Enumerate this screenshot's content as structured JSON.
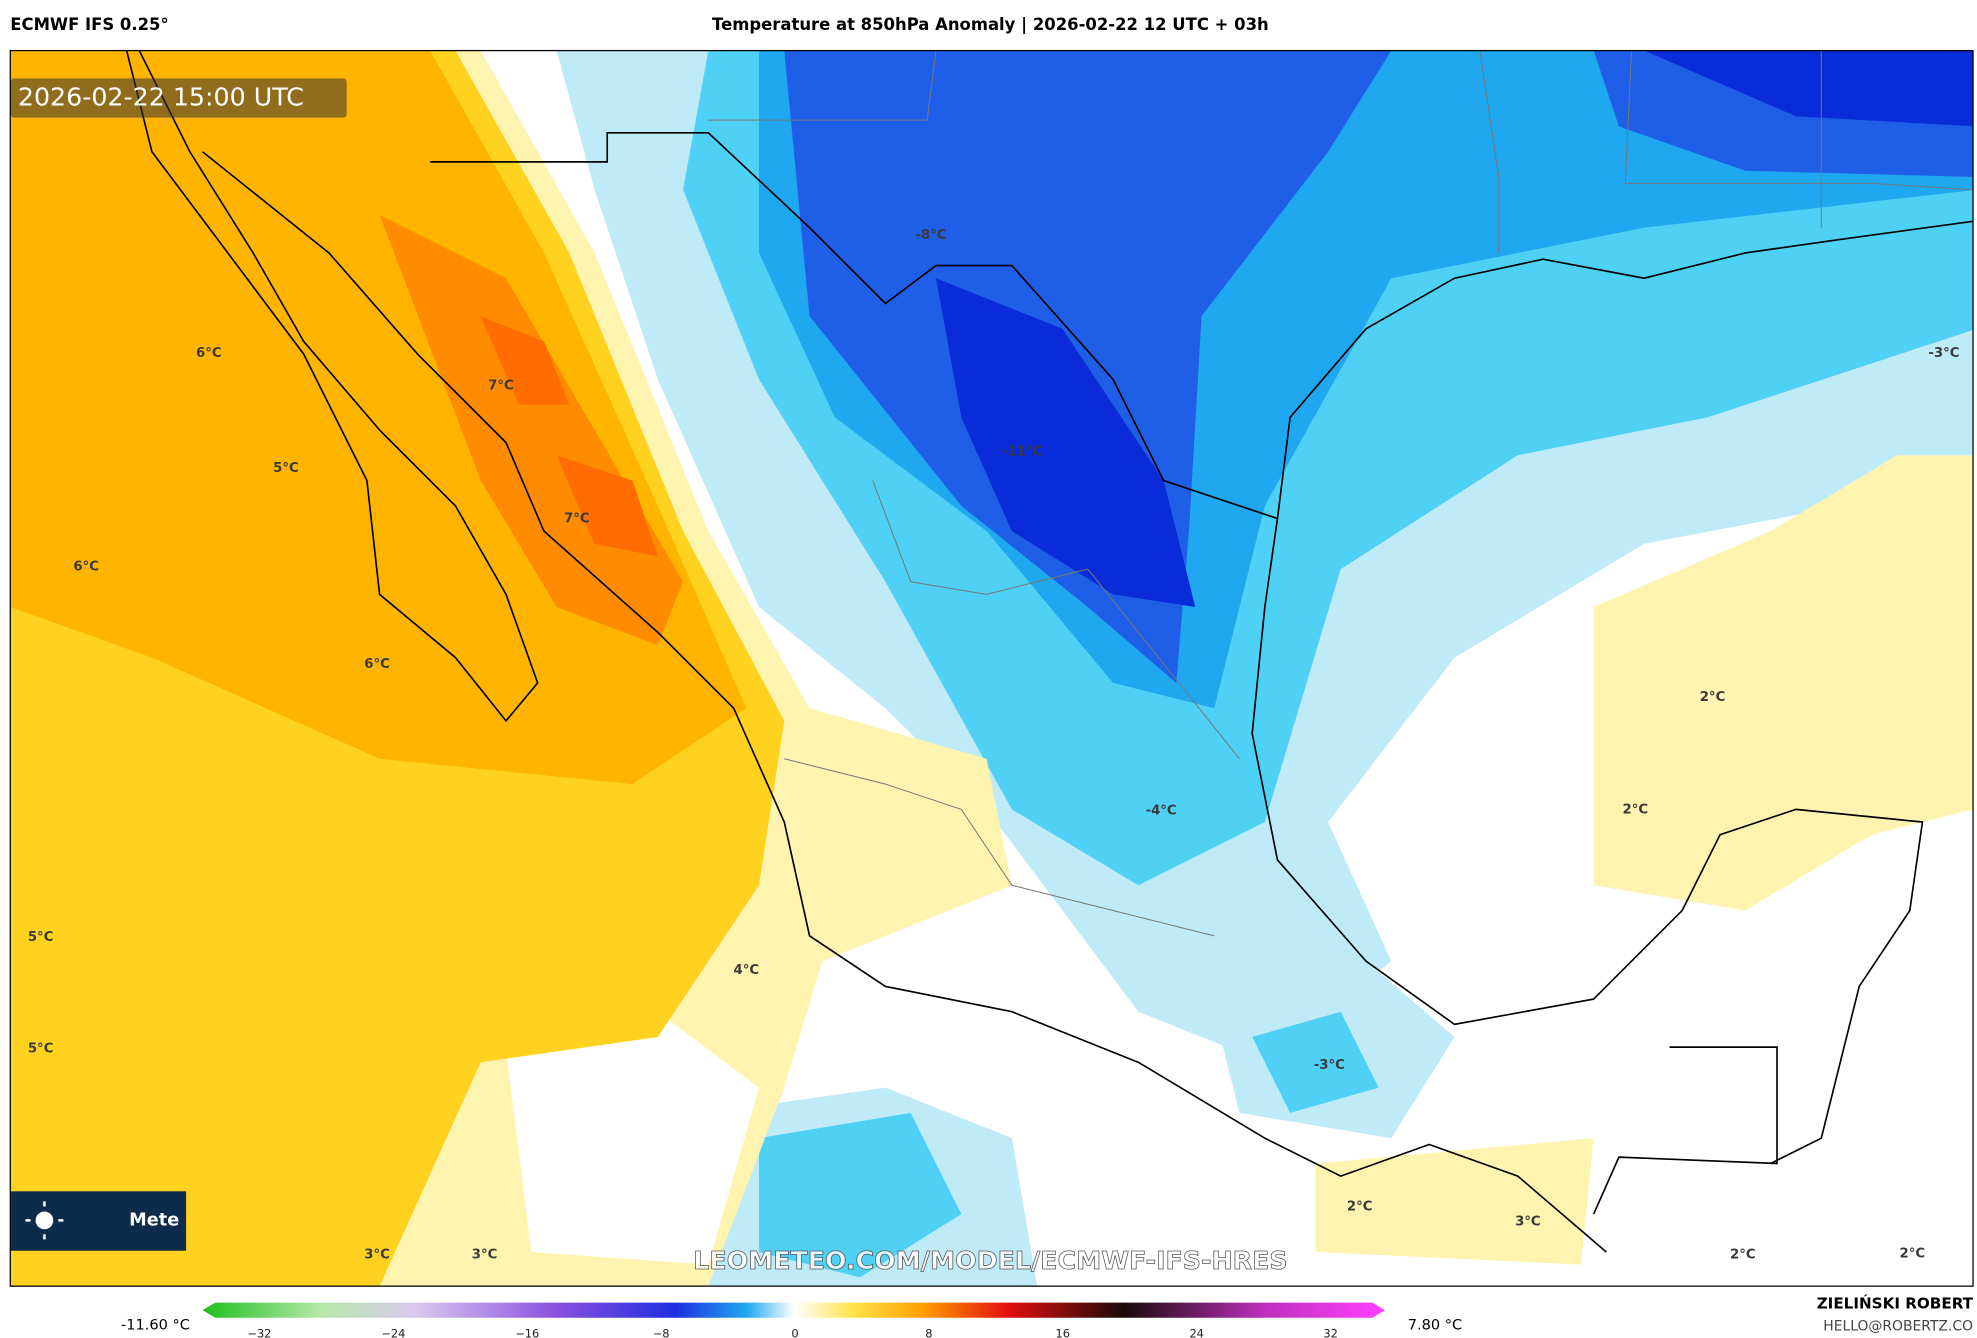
{
  "header": {
    "model": "ECMWF IFS 0.25°",
    "title": "Temperature at 850hPa Anomaly | 2026-02-22 12 UTC + 03h"
  },
  "map": {
    "timestamp": "2026-02-22 15:00 UTC",
    "contour_labels": [
      "-8°C",
      "-11°C",
      "-3°C",
      "6°C",
      "7°C",
      "5°C",
      "7°C",
      "6°C",
      "6°C",
      "2°C",
      "2°C",
      "-4°C",
      "5°C",
      "4°C",
      "5°C",
      "-3°C",
      "2°C",
      "3°C",
      "3°C",
      "3°C",
      "2°C",
      "2°C"
    ],
    "watermark": "LEOMETEO.COM/MODEL/ECMWF-IFS-HRES",
    "logo": "Mete"
  },
  "colorbar": {
    "min": "-11.60 °C",
    "max": "7.80 °C",
    "ticks": [
      "−32",
      "−24",
      "−16",
      "−8",
      "0",
      "8",
      "16",
      "24",
      "32"
    ]
  },
  "footer": {
    "author": "ZIELIŃSKI ROBERT",
    "email": "HELLO@ROBERTZ.CO"
  }
}
